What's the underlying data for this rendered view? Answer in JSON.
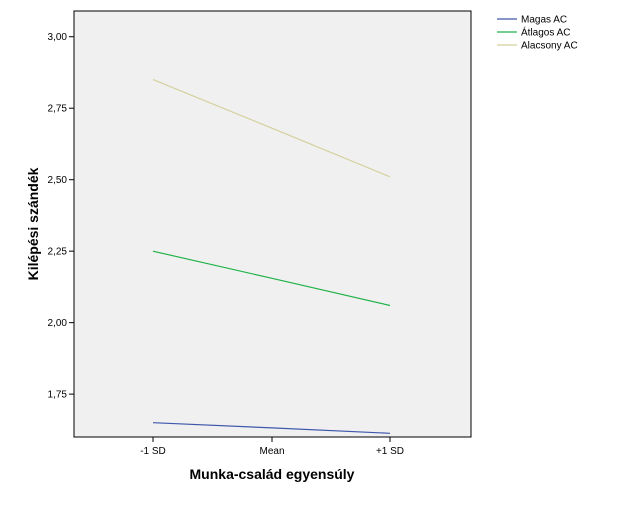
{
  "chart_data": {
    "type": "line",
    "title": "",
    "xlabel": "Munka-család egyensúly",
    "ylabel": "Kilépési szándék",
    "categories": [
      "-1 SD",
      "Mean",
      "+1 SD"
    ],
    "y_ticks": [
      "1,75",
      "2,00",
      "2,25",
      "2,50",
      "2,75",
      "3,00"
    ],
    "y_tick_values": [
      1.75,
      2.0,
      2.25,
      2.5,
      2.75,
      3.0
    ],
    "ylim": [
      1.6,
      3.09
    ],
    "grid": false,
    "legend_position": "top-right outside",
    "plot_background": "#f0f0f0",
    "series": [
      {
        "name": "Magas AC",
        "color": "#3e58ac",
        "values": [
          1.65,
          1.632,
          1.613
        ]
      },
      {
        "name": "Átlagos AC",
        "color": "#21b24a",
        "values": [
          2.25,
          2.155,
          2.06
        ]
      },
      {
        "name": "Alacsony AC",
        "color": "#d4d09e",
        "values": [
          2.85,
          2.68,
          2.51
        ]
      }
    ]
  }
}
